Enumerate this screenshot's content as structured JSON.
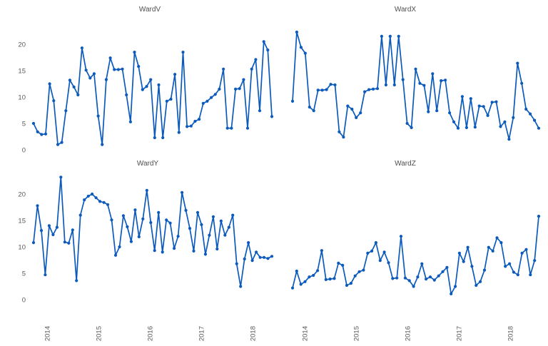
{
  "figure": {
    "background": "#ffffff",
    "line_color": "#0b5abc",
    "text_color": "#595959",
    "title_color": "#4f4f4f",
    "marker": "filled-dot",
    "gridlines": false,
    "layout": "2x2 faceted monthly time-series, shared axes (y labels only on left column, x labels only on bottom row)"
  },
  "chart_data": [
    {
      "type": "line",
      "title": "WardV",
      "position": "top-left",
      "x_tick_labels": [
        "2014",
        "2015",
        "2016",
        "2017",
        "2018"
      ],
      "x_tick_labels_visible": false,
      "y_tick_labels": [
        "0",
        "5",
        "10",
        "15",
        "20"
      ],
      "y_tick_labels_visible": true,
      "y_ticks": [
        0,
        5,
        10,
        15,
        20
      ],
      "ylim": [
        0,
        23.5
      ],
      "values": [
        5.0,
        3.4,
        2.9,
        3.0,
        12.5,
        9.3,
        1.0,
        1.4,
        7.4,
        13.2,
        11.9,
        10.4,
        19.3,
        15.1,
        13.6,
        14.4,
        6.4,
        1.0,
        13.3,
        17.4,
        15.2,
        15.2,
        15.3,
        10.4,
        5.3,
        18.5,
        15.8,
        11.4,
        12.0,
        13.3,
        2.3,
        12.3,
        2.3,
        9.2,
        9.6,
        14.3,
        3.3,
        18.5,
        4.4,
        4.5,
        5.4,
        5.8,
        8.8,
        9.2,
        9.9,
        10.5,
        11.5,
        15.3,
        4.1,
        4.1,
        11.5,
        11.6,
        13.3,
        4.1,
        15.3,
        17.1,
        7.4,
        20.5,
        18.9,
        6.3
      ]
    },
    {
      "type": "line",
      "title": "WardX",
      "position": "top-right",
      "x_tick_labels": [
        "2014",
        "2015",
        "2016",
        "2017",
        "2018"
      ],
      "x_tick_labels_visible": false,
      "y_tick_labels": [],
      "y_tick_labels_visible": false,
      "y_ticks": [
        0,
        5,
        10,
        15,
        20
      ],
      "ylim": [
        0,
        23.5
      ],
      "values": [
        9.2,
        22.3,
        19.4,
        18.3,
        8.1,
        7.4,
        11.3,
        11.3,
        11.4,
        12.4,
        12.3,
        3.4,
        2.4,
        8.3,
        7.7,
        6.1,
        7.0,
        11.0,
        11.4,
        11.5,
        11.6,
        21.5,
        12.3,
        21.5,
        12.3,
        21.5,
        13.3,
        5.0,
        4.2,
        15.3,
        12.6,
        12.2,
        7.2,
        14.4,
        7.4,
        13.1,
        13.2,
        7.0,
        5.3,
        4.1,
        10.1,
        4.2,
        9.7,
        4.3,
        8.3,
        8.2,
        6.5,
        9.0,
        9.1,
        4.4,
        5.3,
        2.0,
        6.1,
        16.4,
        12.6,
        7.7,
        6.8,
        5.6,
        4.1
      ]
    },
    {
      "type": "line",
      "title": "WardY",
      "position": "bottom-left",
      "x_tick_labels": [
        "2014",
        "2015",
        "2016",
        "2017",
        "2018"
      ],
      "x_tick_labels_visible": true,
      "y_tick_labels": [
        "0",
        "5",
        "10",
        "15",
        "20"
      ],
      "y_tick_labels_visible": true,
      "y_ticks": [
        0,
        5,
        10,
        15,
        20
      ],
      "ylim": [
        0,
        23.5
      ],
      "values": [
        10.8,
        17.8,
        13.1,
        4.7,
        14.0,
        12.3,
        13.7,
        23.2,
        10.9,
        10.7,
        13.2,
        3.6,
        16.0,
        18.9,
        19.6,
        20.0,
        19.3,
        18.6,
        18.4,
        18.0,
        15.1,
        8.4,
        10.0,
        15.9,
        13.8,
        11.0,
        17.0,
        11.9,
        15.3,
        20.7,
        14.6,
        9.3,
        16.5,
        9.0,
        15.1,
        14.5,
        9.7,
        12.0,
        20.3,
        16.9,
        13.5,
        9.2,
        16.5,
        14.2,
        8.6,
        12.2,
        15.7,
        9.6,
        14.9,
        12.2,
        13.7,
        16.0,
        6.8,
        2.5,
        7.7,
        10.8,
        7.4,
        9.0,
        8.0,
        8.0,
        7.8,
        8.2
      ]
    },
    {
      "type": "line",
      "title": "WardZ",
      "position": "bottom-right",
      "x_tick_labels": [
        "2014",
        "2015",
        "2016",
        "2017",
        "2018"
      ],
      "x_tick_labels_visible": true,
      "y_tick_labels": [],
      "y_tick_labels_visible": false,
      "y_ticks": [
        0,
        5,
        10,
        15,
        20
      ],
      "ylim": [
        0,
        23.5
      ],
      "values": [
        2.2,
        5.4,
        2.9,
        3.4,
        4.3,
        4.6,
        5.5,
        9.3,
        3.8,
        3.9,
        4.0,
        6.9,
        6.5,
        2.7,
        3.1,
        4.5,
        5.3,
        5.6,
        8.8,
        9.2,
        10.8,
        7.4,
        9.0,
        7.0,
        4.0,
        4.1,
        12.0,
        4.1,
        3.6,
        2.5,
        4.3,
        6.8,
        3.9,
        4.3,
        3.7,
        4.5,
        5.3,
        6.1,
        1.1,
        2.5,
        8.8,
        7.2,
        9.9,
        6.3,
        2.7,
        3.4,
        5.6,
        9.9,
        9.2,
        11.7,
        10.8,
        6.3,
        6.8,
        5.2,
        4.7,
        8.8,
        9.5,
        4.7,
        7.4,
        15.8
      ]
    }
  ]
}
